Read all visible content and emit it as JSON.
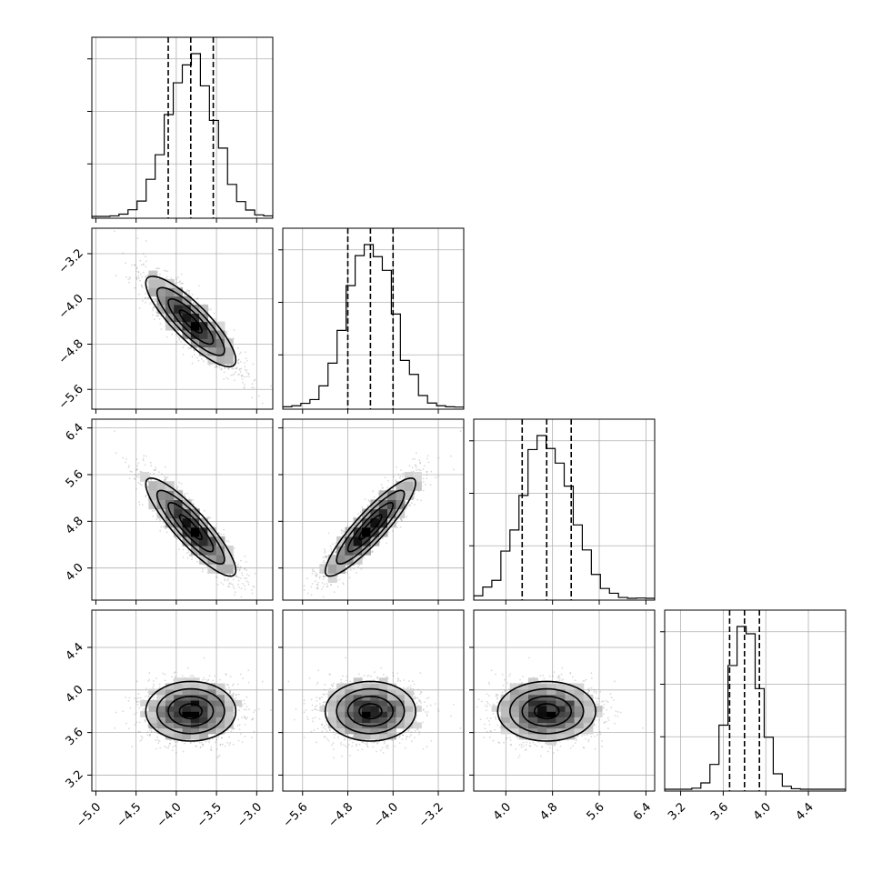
{
  "chart_data": {
    "type": "corner",
    "grid": true,
    "colors": {
      "hist": "#000000",
      "points": "#7a7a7a",
      "density_max": "#000000",
      "contour": "#000000"
    },
    "ranges": [
      [
        -5.05,
        -2.8
      ],
      [
        -5.95,
        -2.75
      ],
      [
        3.45,
        6.55
      ],
      [
        3.05,
        4.75
      ]
    ],
    "ticks": [
      {
        "values": [
          -5.0,
          -4.5,
          -4.0,
          -3.5,
          -3.0
        ],
        "labels": [
          "−5.0",
          "−4.5",
          "−4.0",
          "−3.5",
          "−3.0"
        ]
      },
      {
        "values": [
          -5.6,
          -4.8,
          -4.0,
          -3.2
        ],
        "labels": [
          "−5.6",
          "−4.8",
          "−4.0",
          "−3.2"
        ]
      },
      {
        "values": [
          4.0,
          4.8,
          5.6,
          6.4
        ],
        "labels": [
          "4.0",
          "4.8",
          "5.6",
          "6.4"
        ]
      },
      {
        "values": [
          3.2,
          3.6,
          4.0,
          4.4
        ],
        "labels": [
          "3.2",
          "3.6",
          "4.0",
          "4.4"
        ]
      }
    ],
    "parameters": [
      {
        "mean": -3.82,
        "sd": 0.28,
        "quantiles": [
          -4.1,
          -3.82,
          -3.54
        ]
      },
      {
        "mean": -4.4,
        "sd": 0.4,
        "quantiles": [
          -4.8,
          -4.4,
          -4.0
        ]
      },
      {
        "mean": 4.7,
        "sd": 0.42,
        "quantiles": [
          4.28,
          4.7,
          5.12
        ]
      },
      {
        "mean": 3.8,
        "sd": 0.14,
        "quantiles": [
          3.66,
          3.8,
          3.94
        ]
      }
    ],
    "correlations": [
      [
        1.0,
        -0.85,
        -0.88,
        0.0
      ],
      [
        -0.85,
        1.0,
        0.9,
        0.0
      ],
      [
        -0.88,
        0.9,
        1.0,
        0.0
      ],
      [
        0.0,
        0.0,
        0.0,
        1.0
      ]
    ],
    "hist_bins": 20,
    "hist_peak_counts": [
      "",
      "",
      "",
      ""
    ]
  }
}
